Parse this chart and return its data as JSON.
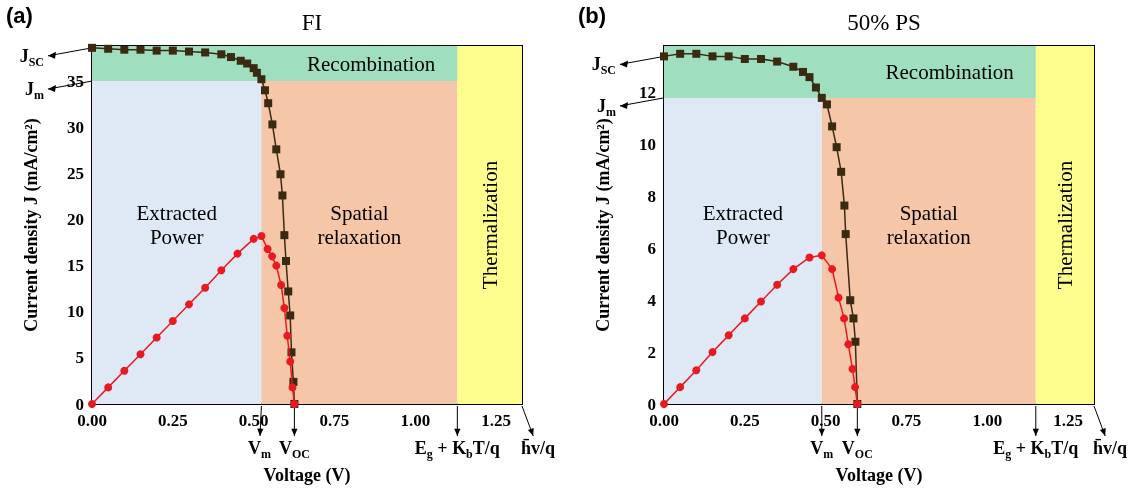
{
  "chart_data": [
    {
      "type": "line",
      "title": "FI",
      "xlabel": "Voltage (V)",
      "ylabel": "Current density J (mA/cm²)",
      "xlim": [
        0,
        1.33
      ],
      "xticks": [
        {
          "value": 0,
          "label": "0.00"
        },
        0.25,
        {
          "value": 0.5,
          "label": "0.50"
        },
        0.75,
        {
          "value": 1,
          "label": "1.00"
        },
        1.25
      ],
      "ylim": [
        0,
        38.8
      ],
      "yticks": [
        0,
        5,
        10,
        15,
        20,
        25,
        30,
        35
      ],
      "series": [
        {
          "color": "#3a2a12",
          "marker": "square",
          "x": [
            0,
            0.05,
            0.1,
            0.15,
            0.2,
            0.25,
            0.3,
            0.35,
            0.4,
            0.43,
            0.46,
            0.48,
            0.5,
            0.51,
            0.524,
            0.535,
            0.545,
            0.558,
            0.57,
            0.583,
            0.589,
            0.595,
            0.6,
            0.607,
            0.613,
            0.617,
            0.623,
            0.626
          ],
          "values": [
            38.6,
            38.5,
            38.4,
            38.4,
            38.3,
            38.3,
            38.2,
            38.1,
            37.9,
            37.6,
            37.2,
            36.9,
            36.4,
            35.9,
            35.2,
            34.0,
            32.6,
            30.3,
            27.6,
            24.9,
            22.6,
            18.3,
            15.5,
            12.2,
            9.6,
            5.6,
            2.4,
            0
          ]
        },
        {
          "color": "#e8191f",
          "marker": "circle",
          "x": [
            0,
            0.05,
            0.1,
            0.15,
            0.2,
            0.25,
            0.3,
            0.35,
            0.4,
            0.45,
            0.5,
            0.524,
            0.543,
            0.557,
            0.57,
            0.585,
            0.595,
            0.604,
            0.613,
            0.62,
            0.626
          ],
          "values": [
            0,
            1.8,
            3.6,
            5.4,
            7.2,
            9.0,
            10.8,
            12.6,
            14.5,
            16.3,
            17.9,
            18.2,
            16.8,
            16.0,
            15.0,
            12.9,
            10.4,
            7.4,
            4.6,
            1.8,
            0
          ]
        }
      ],
      "bands": [
        {
          "axis": "x",
          "from": 0,
          "to": 0.524,
          "label": "Extracted\nPower",
          "color": "#dfe9f5"
        },
        {
          "axis": "x",
          "from": 0.524,
          "to": 1.13,
          "label": "Spatial\nrelaxation",
          "color": "#f5c6a8"
        },
        {
          "axis": "y",
          "from": 35,
          "to": 38.8,
          "label": "Recombination",
          "color": "#9fdfbf"
        },
        {
          "axis": "x",
          "from": 1.13,
          "to": 1.33,
          "label": "Thermalization",
          "color": "#fdfd8e"
        }
      ],
      "annotations": [
        "(a)",
        {
          "text": "J$_{SC}$",
          "x": 0,
          "y": 38.6
        },
        {
          "text": "J$_{m}$",
          "x": 0,
          "y": 35
        },
        {
          "text": "V$_{m}$",
          "x": 0.524,
          "y": 0
        },
        {
          "text": "V$_{OC}$",
          "x": 0.626,
          "y": 0
        },
        {
          "text": "E$_{g}$ + K$_{b}$T/q",
          "x": 1.13,
          "y": 0
        },
        {
          "text": "h̄v/q",
          "x": 1.33,
          "y": 0
        }
      ]
    },
    {
      "type": "line",
      "title": "50% PS",
      "xlabel": "Voltage (V)",
      "ylabel": "Current density J (mA/cm²)",
      "xlim": [
        0,
        1.33
      ],
      "xticks": [
        {
          "value": 0,
          "label": "0.00"
        },
        0.25,
        {
          "value": 0.5,
          "label": "0.50"
        },
        0.75,
        {
          "value": 1,
          "label": "1.00"
        },
        1.25
      ],
      "ylim": [
        0,
        13.8
      ],
      "yticks": [
        0,
        2,
        4,
        6,
        8,
        10,
        12
      ],
      "series": [
        {
          "color": "#3a2a12",
          "marker": "square",
          "x": [
            0,
            0.05,
            0.1,
            0.15,
            0.2,
            0.25,
            0.3,
            0.35,
            0.4,
            0.43,
            0.45,
            0.47,
            0.488,
            0.504,
            0.52,
            0.534,
            0.548,
            0.558,
            0.562,
            0.576,
            0.586,
            0.592,
            0.598
          ],
          "values": [
            13.4,
            13.5,
            13.5,
            13.4,
            13.4,
            13.3,
            13.3,
            13.2,
            13.0,
            12.8,
            12.6,
            12.2,
            11.8,
            11.55,
            10.7,
            9.9,
            8.95,
            7.65,
            6.55,
            4.0,
            3.3,
            2.4,
            0
          ]
        },
        {
          "color": "#e8191f",
          "marker": "circle",
          "x": [
            0,
            0.05,
            0.1,
            0.15,
            0.2,
            0.25,
            0.3,
            0.35,
            0.4,
            0.45,
            0.488,
            0.52,
            0.54,
            0.557,
            0.57,
            0.583,
            0.591,
            0.598
          ],
          "values": [
            0,
            0.65,
            1.3,
            2.0,
            2.65,
            3.3,
            3.95,
            4.6,
            5.2,
            5.65,
            5.73,
            5.2,
            4.1,
            3.3,
            2.3,
            1.35,
            0.65,
            0
          ]
        }
      ],
      "bands": [
        {
          "axis": "x",
          "from": 0,
          "to": 0.488,
          "label": "Extracted\nPower",
          "color": "#dfe9f5"
        },
        {
          "axis": "x",
          "from": 0.488,
          "to": 1.15,
          "label": "Spatial\nrelaxation",
          "color": "#f5c6a8"
        },
        {
          "axis": "y",
          "from": 11.8,
          "to": 13.8,
          "label": "Recombination",
          "color": "#9fdfbf"
        },
        {
          "axis": "x",
          "from": 1.15,
          "to": 1.33,
          "label": "Thermalization",
          "color": "#fdfd8e"
        }
      ],
      "annotations": [
        "(b)",
        {
          "text": "J$_{SC}$",
          "x": 0,
          "y": 13.4
        },
        {
          "text": "J$_{m}$",
          "x": 0,
          "y": 11.8
        },
        {
          "text": "V$_{m}$",
          "x": 0.488,
          "y": 0
        },
        {
          "text": "V$_{OC}$",
          "x": 0.598,
          "y": 0
        },
        {
          "text": "E$_{g}$ + K$_{b}$T/q",
          "x": 1.15,
          "y": 0
        },
        {
          "text": "h̄v/q",
          "x": 1.33,
          "y": 0
        }
      ]
    }
  ]
}
